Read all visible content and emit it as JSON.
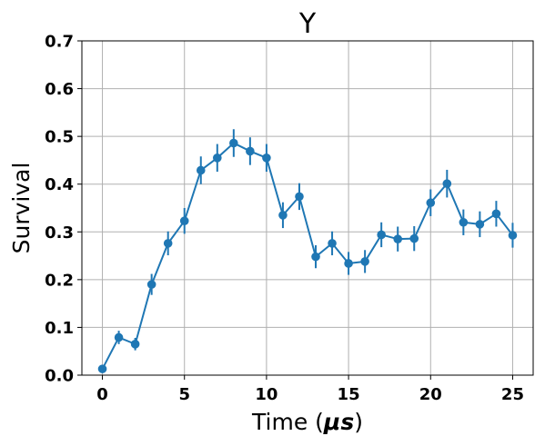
{
  "chart_data": {
    "type": "line",
    "title": "Y",
    "xlabel": "Time (",
    "xlabel_unit": "μs",
    "xlabel_close": ")",
    "ylabel": "Survival",
    "xlim": [
      -1.25,
      26.25
    ],
    "ylim": [
      0.0,
      0.7
    ],
    "xticks": [
      0,
      5,
      10,
      15,
      20,
      25
    ],
    "yticks": [
      0.0,
      0.1,
      0.2,
      0.3,
      0.4,
      0.5,
      0.6,
      0.7
    ],
    "xtick_labels": [
      "0",
      "5",
      "10",
      "15",
      "20",
      "25"
    ],
    "ytick_labels": [
      "0.0",
      "0.1",
      "0.2",
      "0.3",
      "0.4",
      "0.5",
      "0.6",
      "0.7"
    ],
    "grid": true,
    "color": "#1f77b4",
    "x": [
      0,
      1,
      2,
      3,
      4,
      5,
      6,
      7,
      8,
      9,
      10,
      11,
      12,
      13,
      14,
      15,
      16,
      17,
      18,
      19,
      20,
      21,
      22,
      23,
      24,
      25
    ],
    "y": [
      0.013,
      0.079,
      0.065,
      0.19,
      0.276,
      0.323,
      0.429,
      0.455,
      0.486,
      0.469,
      0.455,
      0.335,
      0.374,
      0.248,
      0.276,
      0.234,
      0.238,
      0.294,
      0.285,
      0.286,
      0.361,
      0.401,
      0.32,
      0.316,
      0.338,
      0.293
    ],
    "yerr": [
      0.005,
      0.014,
      0.013,
      0.022,
      0.025,
      0.027,
      0.029,
      0.029,
      0.029,
      0.029,
      0.029,
      0.027,
      0.028,
      0.024,
      0.025,
      0.024,
      0.024,
      0.026,
      0.026,
      0.026,
      0.028,
      0.029,
      0.027,
      0.027,
      0.027,
      0.026
    ]
  }
}
